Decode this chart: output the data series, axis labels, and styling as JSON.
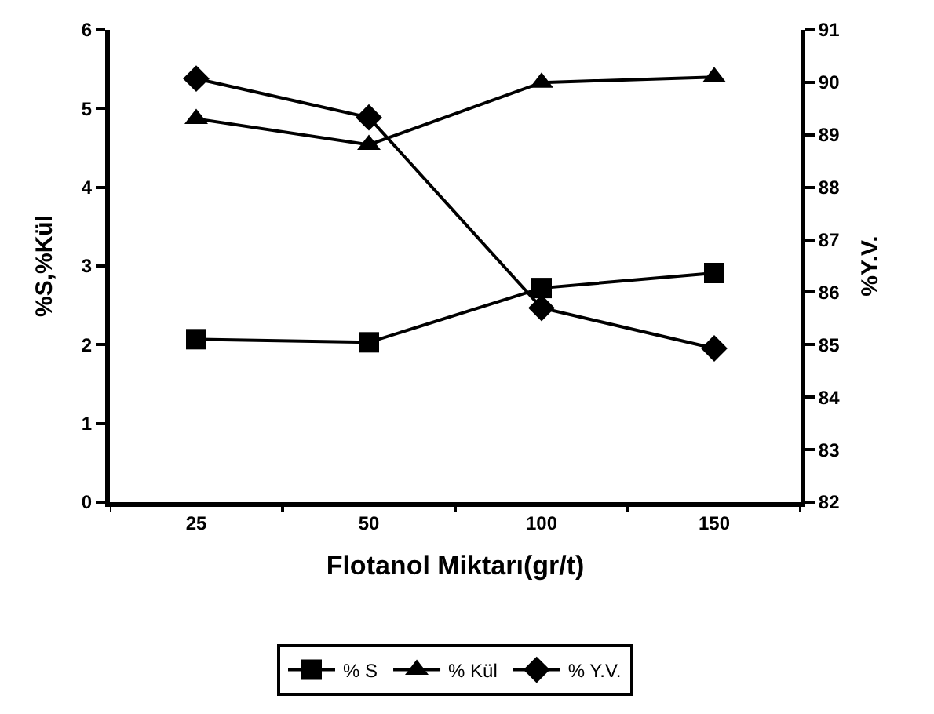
{
  "chart_data": {
    "type": "line",
    "xlabel": "Flotanol Miktarı(gr/t)",
    "ylabel": "%S,%Kül",
    "y2label": "%Y.V.",
    "categories": [
      "25",
      "50",
      "100",
      "150"
    ],
    "series": [
      {
        "name": "% S",
        "color": "#000000",
        "marker": "square",
        "values": [
          2.07,
          2.03,
          2.72,
          2.91
        ]
      },
      {
        "name": "% Kül",
        "color": "#000000",
        "marker": "triangle",
        "values": [
          4.87,
          4.54,
          5.33,
          5.4
        ]
      },
      {
        "name": "% Y.V.",
        "color": "#000000",
        "marker": "diamond",
        "axis": "y2",
        "values": [
          90.07,
          89.33,
          85.7,
          84.93
        ]
      }
    ],
    "ylim": [
      0,
      6
    ],
    "yticks": [
      0,
      1,
      2,
      3,
      4,
      5,
      6
    ],
    "y2lim": [
      82,
      91
    ],
    "y2ticks": [
      82,
      83,
      84,
      85,
      86,
      87,
      88,
      89,
      90,
      91
    ],
    "legend": "bottom",
    "line_style": "solid"
  }
}
